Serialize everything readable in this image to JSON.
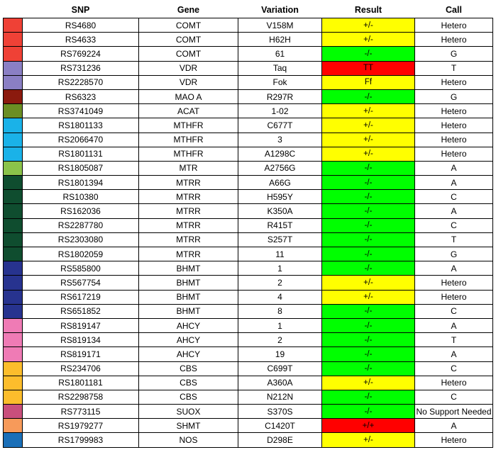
{
  "headers": {
    "swatch": "",
    "snp": "SNP",
    "gene": "Gene",
    "variation": "Variation",
    "result": "Result",
    "call": "Call"
  },
  "result_colors": {
    "yellow": "#ffff00",
    "green": "#00ff00",
    "red": "#ff0000"
  },
  "rows": [
    {
      "color": "#ef4136",
      "snp": "RS4680",
      "gene": "COMT",
      "variation": "V158M",
      "result": "+/-",
      "result_color": "yellow",
      "call": "Hetero"
    },
    {
      "color": "#ef4136",
      "snp": "RS4633",
      "gene": "COMT",
      "variation": "H62H",
      "result": "+/-",
      "result_color": "yellow",
      "call": "Hetero"
    },
    {
      "color": "#ef4136",
      "snp": "RS769224",
      "gene": "COMT",
      "variation": "61",
      "result": "-/-",
      "result_color": "green",
      "call": "G"
    },
    {
      "color": "#8a7fc4",
      "snp": "RS731236",
      "gene": "VDR",
      "variation": "Taq",
      "result": "TT",
      "result_color": "red",
      "call": "T"
    },
    {
      "color": "#8a7fc4",
      "snp": "RS2228570",
      "gene": "VDR",
      "variation": "Fok",
      "result": "Ff",
      "result_color": "yellow",
      "call": "Hetero"
    },
    {
      "color": "#8b1a0e",
      "snp": "RS6323",
      "gene": "MAO A",
      "variation": "R297R",
      "result": "-/-",
      "result_color": "green",
      "call": "G"
    },
    {
      "color": "#6b8e23",
      "snp": "RS3741049",
      "gene": "ACAT",
      "variation": "1-02",
      "result": "+/-",
      "result_color": "yellow",
      "call": "Hetero"
    },
    {
      "color": "#1ab2e8",
      "snp": "RS1801133",
      "gene": "MTHFR",
      "variation": "C677T",
      "result": "+/-",
      "result_color": "yellow",
      "call": "Hetero"
    },
    {
      "color": "#1ab2e8",
      "snp": "RS2066470",
      "gene": "MTHFR",
      "variation": "3",
      "result": "+/-",
      "result_color": "yellow",
      "call": "Hetero"
    },
    {
      "color": "#1ab2e8",
      "snp": "RS1801131",
      "gene": "MTHFR",
      "variation": "A1298C",
      "result": "+/-",
      "result_color": "yellow",
      "call": "Hetero"
    },
    {
      "color": "#8bc34a",
      "snp": "RS1805087",
      "gene": "MTR",
      "variation": "A2756G",
      "result": "-/-",
      "result_color": "green",
      "call": "A"
    },
    {
      "color": "#0f4d2f",
      "snp": "RS1801394",
      "gene": "MTRR",
      "variation": "A66G",
      "result": "-/-",
      "result_color": "green",
      "call": "A"
    },
    {
      "color": "#0f4d2f",
      "snp": "RS10380",
      "gene": "MTRR",
      "variation": "H595Y",
      "result": "-/-",
      "result_color": "green",
      "call": "C"
    },
    {
      "color": "#0f4d2f",
      "snp": "RS162036",
      "gene": "MTRR",
      "variation": "K350A",
      "result": "-/-",
      "result_color": "green",
      "call": "A"
    },
    {
      "color": "#0f4d2f",
      "snp": "RS2287780",
      "gene": "MTRR",
      "variation": "R415T",
      "result": "-/-",
      "result_color": "green",
      "call": "C"
    },
    {
      "color": "#0f4d2f",
      "snp": "RS2303080",
      "gene": "MTRR",
      "variation": "S257T",
      "result": "-/-",
      "result_color": "green",
      "call": "T"
    },
    {
      "color": "#0f4d2f",
      "snp": "RS1802059",
      "gene": "MTRR",
      "variation": "11",
      "result": "-/-",
      "result_color": "green",
      "call": "G"
    },
    {
      "color": "#27338f",
      "snp": "RS585800",
      "gene": "BHMT",
      "variation": "1",
      "result": "-/-",
      "result_color": "green",
      "call": "A"
    },
    {
      "color": "#27338f",
      "snp": "RS567754",
      "gene": "BHMT",
      "variation": "2",
      "result": "+/-",
      "result_color": "yellow",
      "call": "Hetero"
    },
    {
      "color": "#27338f",
      "snp": "RS617219",
      "gene": "BHMT",
      "variation": "4",
      "result": "+/-",
      "result_color": "yellow",
      "call": "Hetero"
    },
    {
      "color": "#27338f",
      "snp": "RS651852",
      "gene": "BHMT",
      "variation": "8",
      "result": "-/-",
      "result_color": "green",
      "call": "C"
    },
    {
      "color": "#ef7bb5",
      "snp": "RS819147",
      "gene": "AHCY",
      "variation": "1",
      "result": "-/-",
      "result_color": "green",
      "call": "A"
    },
    {
      "color": "#ef7bb5",
      "snp": "RS819134",
      "gene": "AHCY",
      "variation": "2",
      "result": "-/-",
      "result_color": "green",
      "call": "T"
    },
    {
      "color": "#ef7bb5",
      "snp": "RS819171",
      "gene": "AHCY",
      "variation": "19",
      "result": "-/-",
      "result_color": "green",
      "call": "A"
    },
    {
      "color": "#fcbd2c",
      "snp": "RS234706",
      "gene": "CBS",
      "variation": "C699T",
      "result": "-/-",
      "result_color": "green",
      "call": "C"
    },
    {
      "color": "#fcbd2c",
      "snp": "RS1801181",
      "gene": "CBS",
      "variation": "A360A",
      "result": "+/-",
      "result_color": "yellow",
      "call": "Hetero"
    },
    {
      "color": "#fcbd2c",
      "snp": "RS2298758",
      "gene": "CBS",
      "variation": "N212N",
      "result": "-/-",
      "result_color": "green",
      "call": "C"
    },
    {
      "color": "#c94f7c",
      "snp": "RS773115",
      "gene": "SUOX",
      "variation": "S370S",
      "result": "-/-",
      "result_color": "green",
      "call": "No Support Needed"
    },
    {
      "color": "#f79a5a",
      "snp": "RS1979277",
      "gene": "SHMT",
      "variation": "C1420T",
      "result": "+/+",
      "result_color": "red",
      "call": "A"
    },
    {
      "color": "#1a6fb8",
      "snp": "RS1799983",
      "gene": "NOS",
      "variation": "D298E",
      "result": "+/-",
      "result_color": "yellow",
      "call": "Hetero"
    }
  ]
}
